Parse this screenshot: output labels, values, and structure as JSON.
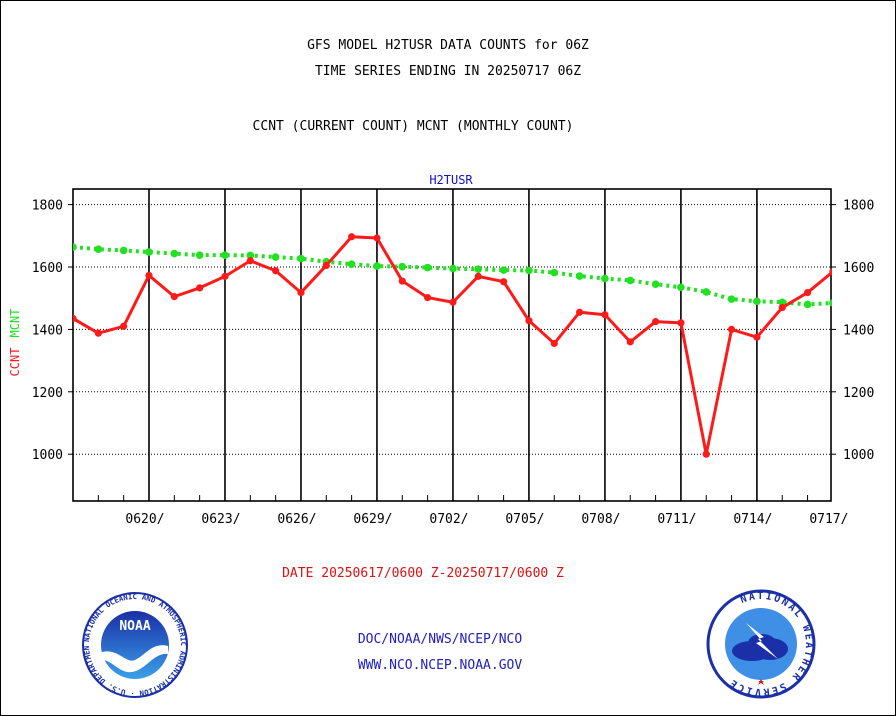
{
  "titles": {
    "line1": "GFS MODEL H2TUSR DATA COUNTS for 06Z",
    "line2": "TIME SERIES ENDING IN 20250717 06Z",
    "line3": "CCNT (CURRENT COUNT) MCNT (MONTHLY COUNT)"
  },
  "footer": {
    "date_range": "DATE 20250617/0600 Z-20250717/0600 Z",
    "org_path": "DOC/NOAA/NWS/NCEP/NCO",
    "website": "WWW.NCO.NCEP.NOAA.GOV"
  },
  "logos": {
    "noaa": {
      "center_text": "NOAA",
      "ring_text": "NATIONAL OCEANIC AND ATMOSPHERIC ADMINISTRATION · U.S. DEPARTMENT OF COMMERCE"
    },
    "nws": {
      "ring_text": "NATIONAL WEATHER SERVICE"
    }
  },
  "colors": {
    "ccnt": "#ff1a1a",
    "mcnt": "#22e022",
    "panel_title": "#1010c8",
    "axis": "#000000"
  },
  "chart_data": {
    "type": "line",
    "title": "H2TUSR",
    "ylabel_ccnt": "CCNT",
    "ylabel_mcnt": "MCNT",
    "ylim": [
      850,
      1850
    ],
    "yticks": [
      1000,
      1200,
      1400,
      1600,
      1800
    ],
    "x_start": "0617/06Z",
    "x_end": "0717/06Z",
    "xtick_labels": [
      "0620/",
      "0623/",
      "0626/",
      "0629/",
      "0702/",
      "0705/",
      "0708/",
      "0711/",
      "0714/",
      "0717/"
    ],
    "grid": true,
    "series": [
      {
        "name": "CCNT",
        "color": "#ff1a1a",
        "values": [
          1435,
          1388,
          1410,
          1573,
          1505,
          1533,
          1570,
          1620,
          1588,
          1518,
          1605,
          1697,
          1693,
          1555,
          1502,
          1487,
          1570,
          1553,
          1428,
          1355,
          1455,
          1447,
          1360,
          1425,
          1421,
          1000,
          1400,
          1375,
          1470,
          1518,
          1585
        ]
      },
      {
        "name": "MCNT",
        "color": "#22e022",
        "values": [
          1664,
          1657,
          1653,
          1648,
          1643,
          1638,
          1638,
          1637,
          1632,
          1627,
          1617,
          1609,
          1603,
          1601,
          1598,
          1595,
          1593,
          1590,
          1589,
          1582,
          1571,
          1563,
          1557,
          1545,
          1535,
          1520,
          1497,
          1490,
          1487,
          1480,
          1485
        ]
      }
    ]
  }
}
